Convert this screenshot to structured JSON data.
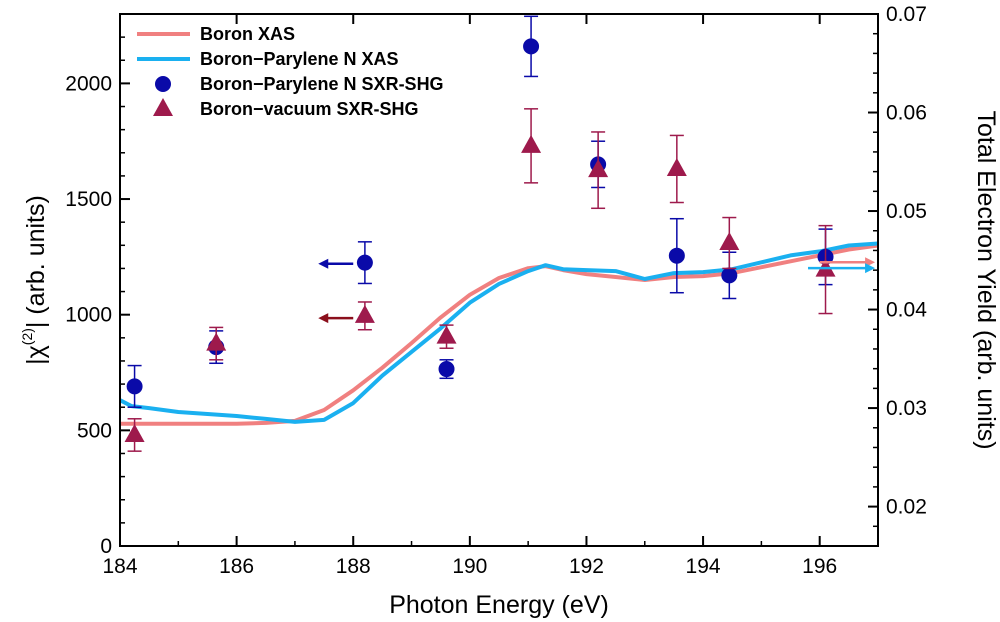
{
  "chart_data": {
    "type": "scatter",
    "xlabel": "Photon Energy (eV)",
    "ylabel_left": "|χ⁽²⁾| (arb. units)",
    "ylabel_left_parts": {
      "pre": "|χ",
      "sup": "(2)",
      "post": "| (arb. units)"
    },
    "ylabel_right": "Total Electron Yield (arb. units)",
    "xlim": [
      184,
      197
    ],
    "ylim_left": [
      0,
      2300
    ],
    "ylim_right": [
      0.016,
      0.07
    ],
    "x_ticks": [
      184,
      186,
      188,
      190,
      192,
      194,
      196
    ],
    "y_left_ticks": [
      0,
      500,
      1000,
      1500,
      2000
    ],
    "y_right_ticks": [
      0.02,
      0.03,
      0.04,
      0.05,
      0.06,
      0.07
    ],
    "legend_position": "top-left",
    "line_series": [
      {
        "name": "Boron XAS",
        "axis": "right",
        "color": "#f08080",
        "points": [
          [
            184,
            0.0284
          ],
          [
            185,
            0.0284
          ],
          [
            186,
            0.0284
          ],
          [
            186.5,
            0.0285
          ],
          [
            187,
            0.0287
          ],
          [
            187.5,
            0.0298
          ],
          [
            188,
            0.0318
          ],
          [
            188.5,
            0.0341
          ],
          [
            189,
            0.0366
          ],
          [
            189.5,
            0.0392
          ],
          [
            190,
            0.0415
          ],
          [
            190.5,
            0.0432
          ],
          [
            191,
            0.0442
          ],
          [
            191.3,
            0.0444
          ],
          [
            191.6,
            0.044
          ],
          [
            192,
            0.0436
          ],
          [
            192.5,
            0.0433
          ],
          [
            193,
            0.043
          ],
          [
            193.5,
            0.0433
          ],
          [
            194,
            0.0434
          ],
          [
            194.5,
            0.0437
          ],
          [
            195,
            0.0443
          ],
          [
            195.5,
            0.0449
          ],
          [
            196,
            0.0455
          ],
          [
            196.5,
            0.0461
          ],
          [
            197,
            0.0465
          ]
        ]
      },
      {
        "name": "Boron−Parylene N XAS",
        "axis": "right",
        "color": "#1ab0f0",
        "points": [
          [
            184,
            0.0308
          ],
          [
            184.2,
            0.0302
          ],
          [
            184.5,
            0.03
          ],
          [
            185,
            0.0296
          ],
          [
            185.5,
            0.0294
          ],
          [
            186,
            0.0292
          ],
          [
            186.5,
            0.0289
          ],
          [
            187,
            0.0286
          ],
          [
            187.5,
            0.0288
          ],
          [
            188,
            0.0305
          ],
          [
            188.5,
            0.0333
          ],
          [
            189,
            0.0357
          ],
          [
            189.5,
            0.0381
          ],
          [
            190,
            0.0407
          ],
          [
            190.5,
            0.0426
          ],
          [
            191,
            0.0439
          ],
          [
            191.3,
            0.0445
          ],
          [
            191.6,
            0.0441
          ],
          [
            192,
            0.044
          ],
          [
            192.5,
            0.0439
          ],
          [
            193,
            0.0431
          ],
          [
            193.5,
            0.0437
          ],
          [
            194,
            0.0438
          ],
          [
            194.5,
            0.0441
          ],
          [
            195,
            0.0448
          ],
          [
            195.5,
            0.0455
          ],
          [
            196,
            0.0459
          ],
          [
            196.5,
            0.0465
          ],
          [
            197,
            0.0467
          ]
        ]
      }
    ],
    "scatter_series": [
      {
        "name": "Boron−Parylene N SXR-SHG",
        "axis": "left",
        "marker": "circle",
        "color": "#0a0aa8",
        "points": [
          {
            "x": 184.25,
            "y": 690,
            "err": 90
          },
          {
            "x": 185.65,
            "y": 860,
            "err": 70
          },
          {
            "x": 188.2,
            "y": 1225,
            "err": 90
          },
          {
            "x": 189.6,
            "y": 765,
            "err": 40
          },
          {
            "x": 191.05,
            "y": 2160,
            "err": 130
          },
          {
            "x": 192.2,
            "y": 1650,
            "err": 100
          },
          {
            "x": 193.55,
            "y": 1255,
            "err": 160
          },
          {
            "x": 194.45,
            "y": 1170,
            "err": 100
          },
          {
            "x": 196.1,
            "y": 1250,
            "err": 120
          }
        ]
      },
      {
        "name": "Boron−vacuum SXR-SHG",
        "axis": "left",
        "marker": "triangle",
        "color": "#9e1a4c",
        "points": [
          {
            "x": 184.25,
            "y": 480,
            "err": 70
          },
          {
            "x": 185.65,
            "y": 875,
            "err": 70
          },
          {
            "x": 188.2,
            "y": 995,
            "err": 60
          },
          {
            "x": 189.6,
            "y": 905,
            "err": 50
          },
          {
            "x": 191.05,
            "y": 1730,
            "err": 160
          },
          {
            "x": 192.2,
            "y": 1625,
            "err": 165
          },
          {
            "x": 193.55,
            "y": 1630,
            "err": 145
          },
          {
            "x": 194.45,
            "y": 1310,
            "err": 110
          },
          {
            "x": 196.1,
            "y": 1195,
            "err": 190
          }
        ]
      }
    ],
    "axis_indicators": [
      {
        "direction": "left",
        "color": "#0a0aa8",
        "x_from": 188.0,
        "x_to": 187.4,
        "y": 1220,
        "axis": "left"
      },
      {
        "direction": "left",
        "color": "#8b0f1c",
        "x_from": 188.0,
        "x_to": 187.4,
        "y": 985,
        "axis": "left"
      },
      {
        "direction": "right",
        "color": "#f08080",
        "x_from": 196.0,
        "x_to": 196.95,
        "y": 0.0448,
        "axis": "right"
      },
      {
        "direction": "right",
        "color": "#1ab0f0",
        "x_from": 195.8,
        "x_to": 196.95,
        "y": 0.0442,
        "axis": "right"
      }
    ]
  }
}
